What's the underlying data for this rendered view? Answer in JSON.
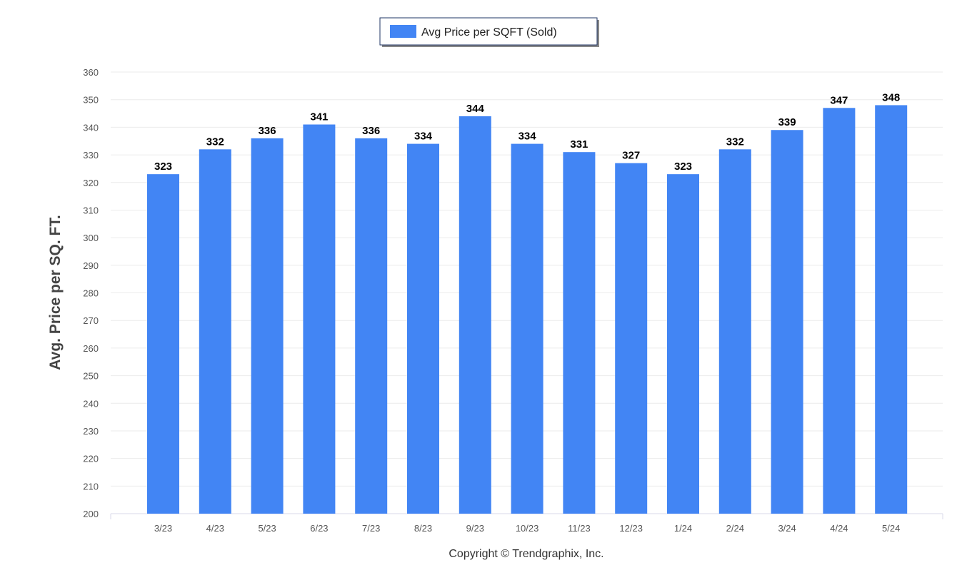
{
  "chart_data": {
    "type": "bar",
    "categories": [
      "3/23",
      "4/23",
      "5/23",
      "6/23",
      "7/23",
      "8/23",
      "9/23",
      "10/23",
      "11/23",
      "12/23",
      "1/24",
      "2/24",
      "3/24",
      "4/24",
      "5/24"
    ],
    "series": [
      {
        "name": "Avg Price per SQFT (Sold)",
        "values": [
          323,
          332,
          336,
          341,
          336,
          334,
          344,
          334,
          331,
          327,
          323,
          332,
          339,
          347,
          348
        ]
      }
    ],
    "ylabel": "Avg. Price per SQ. FT.",
    "xlabel": "",
    "ylim": [
      200,
      360
    ],
    "yticks": [
      200,
      210,
      220,
      230,
      240,
      250,
      260,
      270,
      280,
      290,
      300,
      310,
      320,
      330,
      340,
      350,
      360
    ],
    "grid": true,
    "legend_position": "top-center",
    "bar_color": "#4285f4"
  },
  "legend": {
    "label": "Avg Price per SQFT (Sold)"
  },
  "credit": "Copyright © Trendgraphix, Inc."
}
